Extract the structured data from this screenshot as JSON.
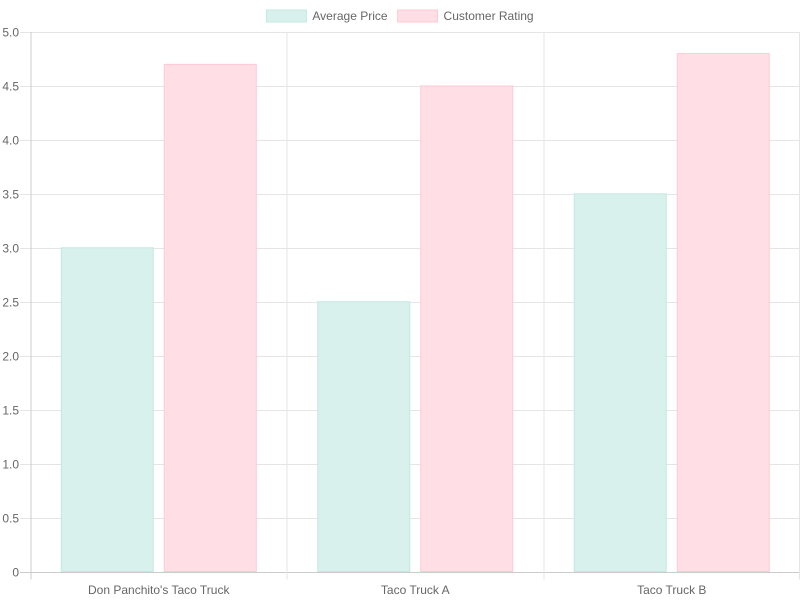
{
  "chart_data": {
    "type": "bar",
    "categories": [
      "Don Panchito's Taco Truck",
      "Taco Truck A",
      "Taco Truck B"
    ],
    "series": [
      {
        "name": "Average Price",
        "values": [
          3.0,
          2.5,
          3.5
        ],
        "fill": "#d9f1ed",
        "stroke": "#c2e8e2"
      },
      {
        "name": "Customer Rating",
        "values": [
          4.7,
          4.5,
          4.8
        ],
        "fill": "#ffdfe5",
        "stroke": "#ffc9d3"
      }
    ],
    "ylim": [
      0,
      5
    ],
    "yticks": [
      "0",
      "0.5",
      "1.0",
      "1.5",
      "2.0",
      "2.5",
      "3.0",
      "3.5",
      "4.0",
      "4.5",
      "5.0"
    ],
    "grid": true,
    "legend_position": "top"
  }
}
